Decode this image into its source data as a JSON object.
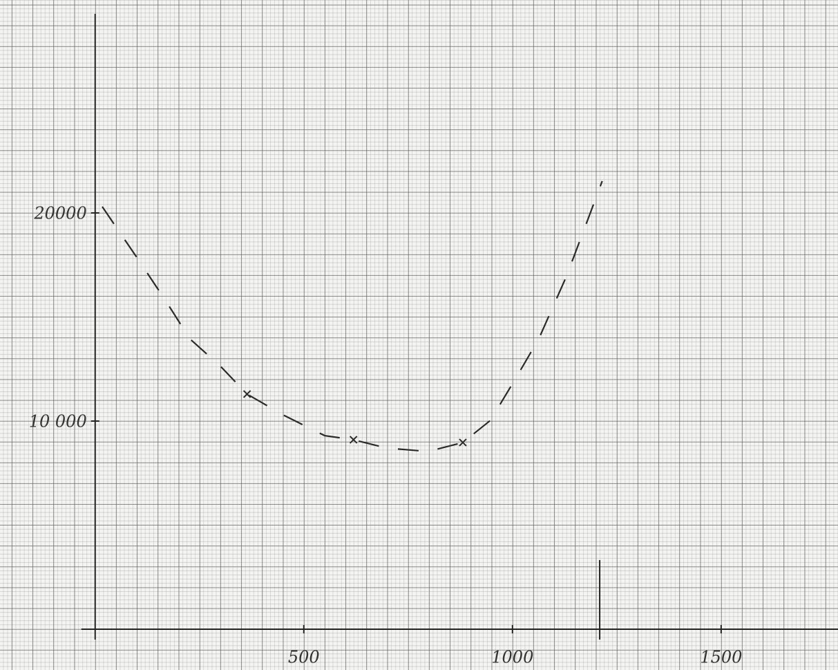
{
  "chart_data": {
    "type": "line",
    "series": [
      {
        "color": "#2a2a2a",
        "style": "dashed",
        "x": [
          17,
          103,
          169,
          227,
          301,
          364,
          450,
          550,
          619,
          699,
          798,
          881,
          947,
          1005,
          1063,
          1129,
          1179,
          1215
        ],
        "values": [
          20300,
          17770,
          15780,
          13950,
          12620,
          11296,
          10300,
          9300,
          9103,
          8700,
          8540,
          8970,
          10030,
          11960,
          13950,
          16940,
          19600,
          21530
        ]
      },
      {
        "color": "#2a2a2a",
        "style": "cross",
        "x": [
          364,
          619,
          881
        ],
        "values": [
          11296,
          9103,
          8970
        ]
      }
    ],
    "xlim": [
      -228,
      1780
    ],
    "ylim": [
      -1960,
      30230
    ],
    "xticks": [
      500,
      1000,
      1500
    ],
    "yticks": [
      {
        "value": 10000,
        "label": "10 000"
      },
      20000
    ],
    "vline_x": 1209,
    "grid": true
  }
}
